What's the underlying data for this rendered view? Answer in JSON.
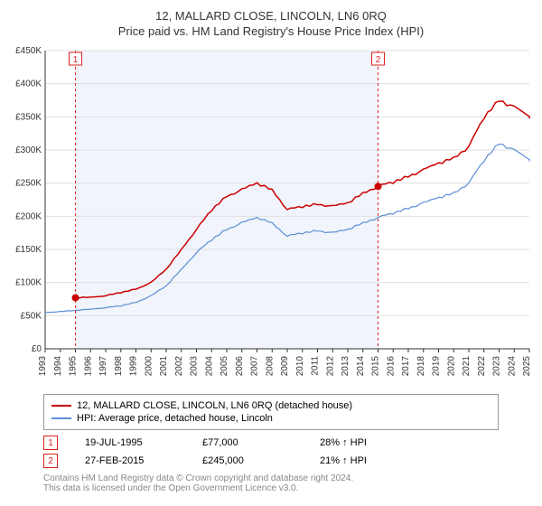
{
  "title": "12, MALLARD CLOSE, LINCOLN, LN6 0RQ",
  "subtitle": "Price paid vs. HM Land Registry's House Price Index (HPI)",
  "chart": {
    "type": "line",
    "background_color": "#ffffff",
    "plot_band_color": "#f1f4fb",
    "grid_color": "#e0e0e0",
    "axis_color": "#333333",
    "text_color": "#333333",
    "x_years": [
      1993,
      1994,
      1995,
      1996,
      1997,
      1998,
      1999,
      2000,
      2001,
      2002,
      2003,
      2004,
      2005,
      2006,
      2007,
      2008,
      2009,
      2010,
      2011,
      2012,
      2013,
      2014,
      2015,
      2016,
      2017,
      2018,
      2019,
      2020,
      2021,
      2022,
      2023,
      2024,
      2025
    ],
    "y_ticks": [
      0,
      50,
      100,
      150,
      200,
      250,
      300,
      350,
      400,
      450
    ],
    "y_max": 450,
    "y_prefix": "£",
    "y_suffix": "K",
    "series": [
      {
        "name": "12, MALLARD CLOSE, LINCOLN, LN6 0RQ (detached house)",
        "color": "#cc0000",
        "width": 1.5,
        "data": [
          null,
          null,
          77,
          78,
          80,
          85,
          90,
          100,
          120,
          150,
          180,
          210,
          230,
          240,
          250,
          240,
          210,
          215,
          218,
          215,
          220,
          235,
          245,
          252,
          260,
          270,
          280,
          288,
          305,
          350,
          375,
          365,
          350
        ]
      },
      {
        "name": "HPI: Average price, detached house, Lincoln",
        "color": "#5b8fd6",
        "width": 1.2,
        "data": [
          55,
          56,
          58,
          60,
          62,
          65,
          70,
          80,
          95,
          120,
          145,
          165,
          180,
          190,
          198,
          190,
          170,
          175,
          178,
          175,
          180,
          190,
          198,
          205,
          212,
          220,
          228,
          235,
          250,
          285,
          310,
          300,
          285
        ]
      }
    ],
    "markers": [
      {
        "n": "1",
        "year": 1995,
        "value": 77
      },
      {
        "n": "2",
        "year": 2015,
        "value": 245
      }
    ],
    "plot_band": {
      "from": 1995,
      "to": 2015
    }
  },
  "legend": {
    "s1": "12, MALLARD CLOSE, LINCOLN, LN6 0RQ (detached house)",
    "s2": "HPI: Average price, detached house, Lincoln"
  },
  "marker_rows": [
    {
      "n": "1",
      "date": "19-JUL-1995",
      "price": "£77,000",
      "pct": "28% ↑ HPI"
    },
    {
      "n": "2",
      "date": "27-FEB-2015",
      "price": "£245,000",
      "pct": "21% ↑ HPI"
    }
  ],
  "footer": {
    "l1": "Contains HM Land Registry data © Crown copyright and database right 2024.",
    "l2": "This data is licensed under the Open Government Licence v3.0."
  }
}
